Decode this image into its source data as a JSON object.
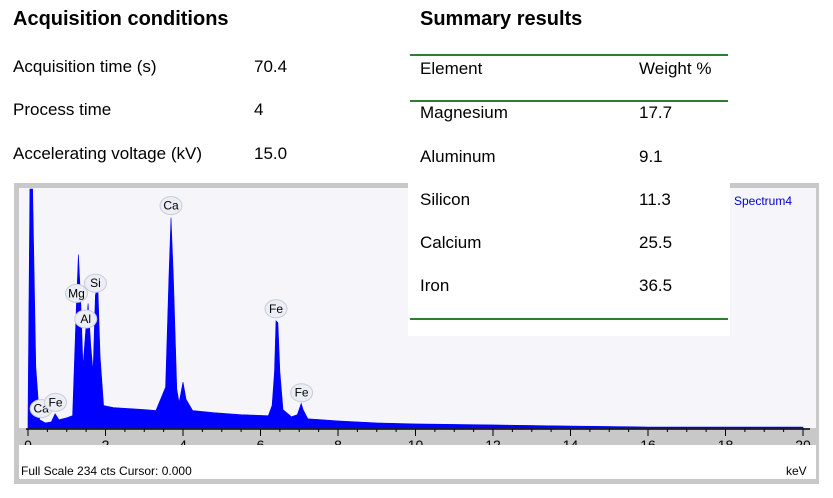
{
  "acquisition": {
    "title": "Acquisition conditions",
    "rows": [
      {
        "label": "Acquisition time (s)",
        "value": "70.4"
      },
      {
        "label": "Process time",
        "value": "4"
      },
      {
        "label": "Accelerating voltage (kV)",
        "value": "15.0"
      }
    ]
  },
  "summary": {
    "title": "Summary results",
    "headers": [
      "Element",
      "Weight %"
    ],
    "rows": [
      {
        "element": "Magnesium",
        "weight": "17.7"
      },
      {
        "element": "Aluminum",
        "weight": "9.1"
      },
      {
        "element": "Silicon",
        "weight": "11.3"
      },
      {
        "element": "Calcium",
        "weight": "25.5"
      },
      {
        "element": "Iron",
        "weight": "36.5"
      }
    ]
  },
  "spectrum": {
    "name": "Spectrum4",
    "status": "Full Scale 234 cts Cursor: 0.000",
    "unit": "keV",
    "fill_color": "#0000ff",
    "accent_rule_color": "#2e7d32"
  },
  "chart_data": {
    "type": "area",
    "xlabel": "keV",
    "xlim": [
      0,
      20
    ],
    "ylim": [
      0,
      234
    ],
    "x_ticks": [
      0,
      2,
      4,
      6,
      8,
      10,
      12,
      14,
      16,
      18,
      20
    ],
    "series": [
      {
        "name": "Spectrum4",
        "points": [
          [
            0.0,
            10
          ],
          [
            0.05,
            234
          ],
          [
            0.12,
            234
          ],
          [
            0.2,
            60
          ],
          [
            0.3,
            8
          ],
          [
            0.45,
            5
          ],
          [
            0.6,
            6
          ],
          [
            0.7,
            14
          ],
          [
            0.8,
            8
          ],
          [
            1.0,
            10
          ],
          [
            1.15,
            12
          ],
          [
            1.25,
            120
          ],
          [
            1.3,
            170
          ],
          [
            1.36,
            125
          ],
          [
            1.42,
            60
          ],
          [
            1.49,
            95
          ],
          [
            1.55,
            122
          ],
          [
            1.62,
            80
          ],
          [
            1.68,
            55
          ],
          [
            1.74,
            130
          ],
          [
            1.8,
            140
          ],
          [
            1.86,
            70
          ],
          [
            1.95,
            22
          ],
          [
            2.2,
            20
          ],
          [
            2.6,
            19
          ],
          [
            3.0,
            18
          ],
          [
            3.3,
            17
          ],
          [
            3.55,
            40
          ],
          [
            3.64,
            150
          ],
          [
            3.69,
            206
          ],
          [
            3.75,
            150
          ],
          [
            3.84,
            38
          ],
          [
            3.9,
            25
          ],
          [
            4.0,
            45
          ],
          [
            4.08,
            28
          ],
          [
            4.25,
            17
          ],
          [
            4.8,
            15
          ],
          [
            5.5,
            13
          ],
          [
            6.2,
            12
          ],
          [
            6.3,
            22
          ],
          [
            6.36,
            55
          ],
          [
            6.4,
            105
          ],
          [
            6.45,
            103
          ],
          [
            6.5,
            55
          ],
          [
            6.58,
            18
          ],
          [
            6.8,
            11
          ],
          [
            6.95,
            13
          ],
          [
            7.05,
            24
          ],
          [
            7.1,
            18
          ],
          [
            7.22,
            9
          ],
          [
            7.6,
            8
          ],
          [
            8.0,
            7
          ],
          [
            9.0,
            5
          ],
          [
            10.0,
            4
          ],
          [
            12.0,
            3
          ],
          [
            14.0,
            2
          ],
          [
            16.0,
            1
          ],
          [
            18.0,
            1
          ],
          [
            20.0,
            1
          ]
        ]
      }
    ],
    "peak_labels": [
      {
        "label": "Ca",
        "x": 0.34
      },
      {
        "label": "Fe",
        "x": 0.71
      },
      {
        "label": "Mg",
        "x": 1.25
      },
      {
        "label": "Al",
        "x": 1.49
      },
      {
        "label": "Si",
        "x": 1.74
      },
      {
        "label": "Ca",
        "x": 3.69
      },
      {
        "label": "Fe",
        "x": 6.4
      },
      {
        "label": "Fe",
        "x": 7.06
      }
    ]
  }
}
